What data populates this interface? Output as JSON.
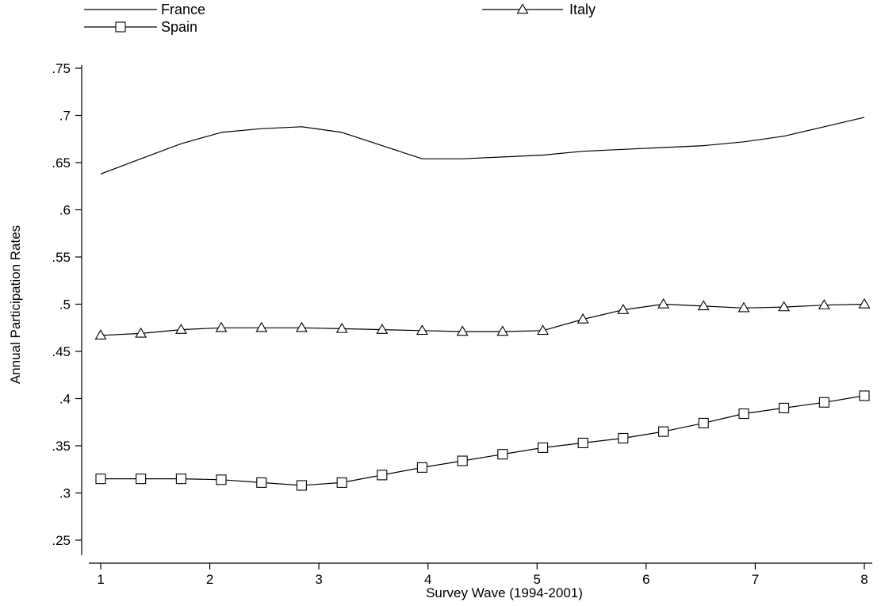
{
  "chart_data": {
    "type": "line",
    "title": "",
    "xlabel": "Survey Wave (1994-2001)",
    "ylabel": "Annual Participation Rates",
    "xlim": [
      1,
      8
    ],
    "ylim": [
      0.25,
      0.75
    ],
    "x_ticks": [
      {
        "value": 1,
        "label": "1"
      },
      {
        "value": 2,
        "label": "2"
      },
      {
        "value": 3,
        "label": "3"
      },
      {
        "value": 4,
        "label": "4"
      },
      {
        "value": 5,
        "label": "5"
      },
      {
        "value": 6,
        "label": "6"
      },
      {
        "value": 7,
        "label": "7"
      },
      {
        "value": 8,
        "label": "8"
      }
    ],
    "y_ticks": [
      {
        "value": 0.25,
        "label": ".25"
      },
      {
        "value": 0.3,
        "label": ".3"
      },
      {
        "value": 0.35,
        "label": ".35"
      },
      {
        "value": 0.4,
        "label": ".4"
      },
      {
        "value": 0.45,
        "label": ".45"
      },
      {
        "value": 0.5,
        "label": ".5"
      },
      {
        "value": 0.55,
        "label": ".55"
      },
      {
        "value": 0.6,
        "label": ".6"
      },
      {
        "value": 0.65,
        "label": ".65"
      },
      {
        "value": 0.7,
        "label": ".7"
      },
      {
        "value": 0.75,
        "label": ".75"
      }
    ],
    "x": [
      1.0,
      1.368,
      1.737,
      2.105,
      2.474,
      2.842,
      3.211,
      3.579,
      3.947,
      4.316,
      4.684,
      5.053,
      5.421,
      5.789,
      6.158,
      6.526,
      6.895,
      7.263,
      7.632,
      8.0
    ],
    "grid": false,
    "legend_position": "top",
    "series": [
      {
        "name": "France",
        "marker": "none",
        "color": "#000000",
        "values": [
          0.638,
          0.654,
          0.67,
          0.682,
          0.686,
          0.688,
          0.682,
          0.668,
          0.654,
          0.654,
          0.656,
          0.658,
          0.662,
          0.664,
          0.666,
          0.668,
          0.672,
          0.678,
          0.688,
          0.698
        ]
      },
      {
        "name": "Italy",
        "marker": "triangle",
        "color": "#000000",
        "values": [
          0.467,
          0.469,
          0.473,
          0.475,
          0.475,
          0.475,
          0.474,
          0.473,
          0.472,
          0.471,
          0.471,
          0.472,
          0.484,
          0.494,
          0.5,
          0.498,
          0.496,
          0.497,
          0.499,
          0.5
        ]
      },
      {
        "name": "Spain",
        "marker": "square",
        "color": "#000000",
        "values": [
          0.315,
          0.315,
          0.315,
          0.314,
          0.311,
          0.308,
          0.311,
          0.319,
          0.327,
          0.334,
          0.341,
          0.348,
          0.353,
          0.358,
          0.365,
          0.374,
          0.384,
          0.39,
          0.396,
          0.403
        ]
      }
    ]
  }
}
